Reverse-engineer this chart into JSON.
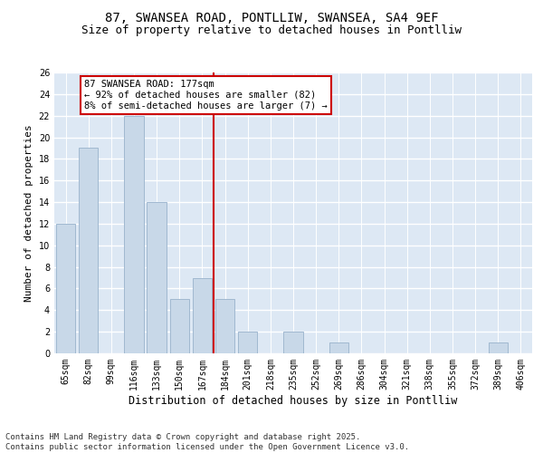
{
  "title1": "87, SWANSEA ROAD, PONTLLIW, SWANSEA, SA4 9EF",
  "title2": "Size of property relative to detached houses in Pontlliw",
  "xlabel": "Distribution of detached houses by size in Pontlliw",
  "ylabel": "Number of detached properties",
  "categories": [
    "65sqm",
    "82sqm",
    "99sqm",
    "116sqm",
    "133sqm",
    "150sqm",
    "167sqm",
    "184sqm",
    "201sqm",
    "218sqm",
    "235sqm",
    "252sqm",
    "269sqm",
    "286sqm",
    "304sqm",
    "321sqm",
    "338sqm",
    "355sqm",
    "372sqm",
    "389sqm",
    "406sqm"
  ],
  "values": [
    12,
    19,
    0,
    22,
    14,
    5,
    7,
    5,
    2,
    0,
    2,
    0,
    1,
    0,
    0,
    0,
    0,
    0,
    0,
    1,
    0
  ],
  "bar_color": "#c8d8e8",
  "bar_edgecolor": "#a0b8d0",
  "vline_x_index": 7.0,
  "vline_color": "#cc0000",
  "annotation_text": "87 SWANSEA ROAD: 177sqm\n← 92% of detached houses are smaller (82)\n8% of semi-detached houses are larger (7) →",
  "annotation_box_color": "white",
  "annotation_box_edgecolor": "#cc0000",
  "ylim": [
    0,
    26
  ],
  "yticks": [
    0,
    2,
    4,
    6,
    8,
    10,
    12,
    14,
    16,
    18,
    20,
    22,
    24,
    26
  ],
  "bg_color": "#dde8f4",
  "footer_text": "Contains HM Land Registry data © Crown copyright and database right 2025.\nContains public sector information licensed under the Open Government Licence v3.0.",
  "title1_fontsize": 10,
  "title2_fontsize": 9,
  "xlabel_fontsize": 8.5,
  "ylabel_fontsize": 8,
  "tick_fontsize": 7,
  "annotation_fontsize": 7.5,
  "footer_fontsize": 6.5
}
